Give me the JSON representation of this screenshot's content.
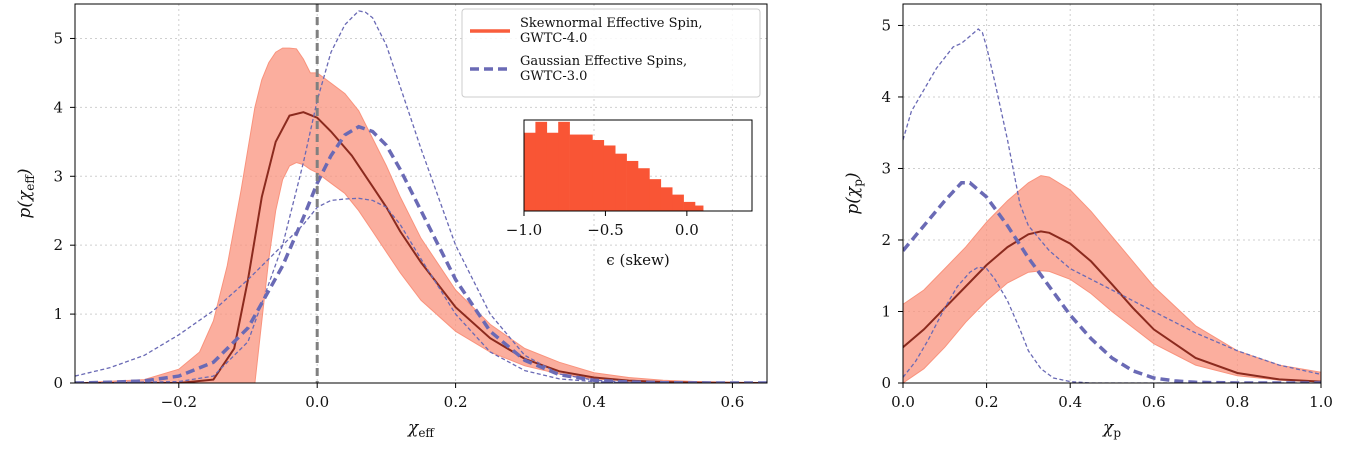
{
  "chart_data": [
    {
      "type": "line",
      "panel": "left",
      "xlabel": "χ_eff",
      "ylabel": "p(χ_eff)",
      "xlim": [
        -0.35,
        0.65
      ],
      "ylim": [
        0,
        5.5
      ],
      "xticks": [
        -0.2,
        0.0,
        0.2,
        0.4,
        0.6
      ],
      "xtick_labels": [
        "−0.2",
        "0.0",
        "0.2",
        "0.4",
        "0.6"
      ],
      "yticks": [
        0,
        1,
        2,
        3,
        4,
        5
      ],
      "ytick_labels": [
        "0",
        "1",
        "2",
        "3",
        "4",
        "5"
      ],
      "grid": true,
      "vline": {
        "x": 0.0,
        "style": "dashed",
        "color": "#808080"
      },
      "legend": {
        "placement": "top-right",
        "entries": [
          {
            "label_lines": [
              "Skewnormal Effective Spin,",
              "GWTC-4.0"
            ],
            "color": "#f95d3c",
            "style": "solid"
          },
          {
            "label_lines": [
              "Gaussian Effective Spins,",
              "GWTC-3.0"
            ],
            "color": "#6a6ab5",
            "style": "dashed"
          }
        ]
      },
      "series": [
        {
          "name": "Skewnormal Effective Spin, GWTC-4.0",
          "kind": "band",
          "color": "#f9937d",
          "x": [
            -0.35,
            -0.25,
            -0.2,
            -0.17,
            -0.15,
            -0.13,
            -0.11,
            -0.1,
            -0.09,
            -0.08,
            -0.07,
            -0.06,
            -0.05,
            -0.04,
            -0.03,
            -0.02,
            -0.01,
            0.0,
            0.02,
            0.04,
            0.06,
            0.08,
            0.1,
            0.12,
            0.15,
            0.2,
            0.25,
            0.3,
            0.35,
            0.4,
            0.45,
            0.5,
            0.55,
            0.6,
            0.65
          ],
          "upper": [
            0.0,
            0.05,
            0.2,
            0.45,
            0.9,
            1.7,
            2.8,
            3.4,
            4.0,
            4.4,
            4.65,
            4.8,
            4.86,
            4.86,
            4.85,
            4.7,
            4.5,
            4.5,
            4.35,
            4.2,
            3.95,
            3.55,
            3.15,
            2.7,
            2.1,
            1.35,
            0.85,
            0.5,
            0.3,
            0.15,
            0.08,
            0.04,
            0.02,
            0.01,
            0.0
          ],
          "lower": [
            0.0,
            0.0,
            0.0,
            0.0,
            0.0,
            0.0,
            0.0,
            0.0,
            0.0,
            0.9,
            1.8,
            2.5,
            2.95,
            3.15,
            3.2,
            3.17,
            3.1,
            3.05,
            2.9,
            2.75,
            2.5,
            2.2,
            1.9,
            1.6,
            1.2,
            0.75,
            0.45,
            0.25,
            0.13,
            0.06,
            0.03,
            0.01,
            0.0,
            0.0,
            0.0
          ]
        },
        {
          "name": "Skewnormal median",
          "kind": "line",
          "style": "solid",
          "color": "#8b2a1e",
          "x": [
            -0.35,
            -0.25,
            -0.2,
            -0.15,
            -0.12,
            -0.1,
            -0.08,
            -0.06,
            -0.04,
            -0.02,
            0.0,
            0.02,
            0.05,
            0.08,
            0.1,
            0.12,
            0.15,
            0.2,
            0.25,
            0.3,
            0.35,
            0.4,
            0.45,
            0.5,
            0.55,
            0.6,
            0.65
          ],
          "y": [
            0.0,
            0.0,
            0.0,
            0.05,
            0.5,
            1.5,
            2.7,
            3.5,
            3.88,
            3.93,
            3.85,
            3.65,
            3.3,
            2.85,
            2.55,
            2.2,
            1.75,
            1.1,
            0.65,
            0.35,
            0.17,
            0.08,
            0.035,
            0.015,
            0.006,
            0.002,
            0.0
          ]
        },
        {
          "name": "Gaussian Effective Spins, GWTC-3.0",
          "kind": "line",
          "style": "dashed",
          "color": "#6a6ab5",
          "x": [
            -0.35,
            -0.3,
            -0.25,
            -0.2,
            -0.15,
            -0.1,
            -0.05,
            -0.02,
            0.0,
            0.02,
            0.04,
            0.06,
            0.08,
            0.1,
            0.12,
            0.15,
            0.2,
            0.25,
            0.3,
            0.35,
            0.4,
            0.45,
            0.5,
            0.55,
            0.6,
            0.65
          ],
          "y": [
            0.0,
            0.01,
            0.03,
            0.1,
            0.3,
            0.8,
            1.7,
            2.4,
            2.9,
            3.3,
            3.6,
            3.72,
            3.65,
            3.45,
            3.1,
            2.5,
            1.5,
            0.75,
            0.33,
            0.12,
            0.04,
            0.015,
            0.005,
            0.001,
            0.0,
            0.0
          ]
        },
        {
          "name": "Gaussian upper",
          "kind": "line",
          "style": "thin-dashed",
          "color": "#6a6ab5",
          "x": [
            -0.35,
            -0.2,
            -0.15,
            -0.1,
            -0.05,
            -0.02,
            0.0,
            0.02,
            0.04,
            0.06,
            0.07,
            0.08,
            0.1,
            0.12,
            0.15,
            0.2,
            0.25,
            0.3,
            0.35,
            0.4,
            0.45,
            0.5
          ],
          "y": [
            0.0,
            0.02,
            0.1,
            0.6,
            2.0,
            3.2,
            4.1,
            4.8,
            5.2,
            5.4,
            5.38,
            5.3,
            4.9,
            4.3,
            3.4,
            2.0,
            1.0,
            0.4,
            0.13,
            0.04,
            0.01,
            0.0
          ]
        },
        {
          "name": "Gaussian lower",
          "kind": "line",
          "style": "thin-dashed",
          "color": "#6a6ab5",
          "x": [
            -0.35,
            -0.3,
            -0.25,
            -0.2,
            -0.15,
            -0.1,
            -0.05,
            -0.02,
            0.0,
            0.02,
            0.04,
            0.06,
            0.08,
            0.1,
            0.12,
            0.15,
            0.2,
            0.25,
            0.3,
            0.35,
            0.4,
            0.45,
            0.5
          ],
          "y": [
            0.1,
            0.22,
            0.4,
            0.7,
            1.05,
            1.5,
            2.0,
            2.3,
            2.55,
            2.65,
            2.67,
            2.68,
            2.65,
            2.55,
            2.3,
            1.8,
            1.0,
            0.45,
            0.18,
            0.06,
            0.02,
            0.005,
            0.0
          ]
        }
      ]
    },
    {
      "type": "bar",
      "panel": "inset",
      "xlabel": "ϵ (skew)",
      "xlim": [
        -1.0,
        0.4
      ],
      "xticks": [
        -1.0,
        -0.5,
        0.0
      ],
      "xtick_labels": [
        "−1.0",
        "−0.5",
        "0.0"
      ],
      "color": "#f95535",
      "bin_edges": [
        -1.0,
        -0.93,
        -0.86,
        -0.79,
        -0.72,
        -0.65,
        -0.58,
        -0.51,
        -0.44,
        -0.37,
        -0.3,
        -0.23,
        -0.16,
        -0.09,
        -0.02,
        0.05,
        0.1
      ],
      "values": [
        0.86,
        0.98,
        0.86,
        0.98,
        0.84,
        0.84,
        0.78,
        0.72,
        0.63,
        0.55,
        0.47,
        0.35,
        0.26,
        0.18,
        0.1,
        0.06
      ]
    },
    {
      "type": "line",
      "panel": "right",
      "xlabel": "χ_p",
      "ylabel": "p(χ_p)",
      "xlim": [
        0.0,
        1.0
      ],
      "ylim": [
        0,
        5.3
      ],
      "xticks": [
        0.0,
        0.2,
        0.4,
        0.6,
        0.8,
        1.0
      ],
      "xtick_labels": [
        "0.0",
        "0.2",
        "0.4",
        "0.6",
        "0.8",
        "1.0"
      ],
      "yticks": [
        0,
        1,
        2,
        3,
        4,
        5
      ],
      "ytick_labels": [
        "0",
        "1",
        "2",
        "3",
        "4",
        "5"
      ],
      "grid": true,
      "series": [
        {
          "name": "Skewnormal band",
          "kind": "band",
          "color": "#f9937d",
          "x": [
            0.0,
            0.05,
            0.1,
            0.15,
            0.2,
            0.25,
            0.3,
            0.33,
            0.35,
            0.4,
            0.45,
            0.5,
            0.6,
            0.7,
            0.8,
            0.9,
            1.0
          ],
          "upper": [
            1.1,
            1.3,
            1.6,
            1.9,
            2.25,
            2.55,
            2.8,
            2.9,
            2.88,
            2.7,
            2.4,
            2.05,
            1.35,
            0.8,
            0.45,
            0.25,
            0.15
          ],
          "lower": [
            0.0,
            0.2,
            0.5,
            0.85,
            1.15,
            1.4,
            1.55,
            1.57,
            1.56,
            1.45,
            1.25,
            1.0,
            0.55,
            0.25,
            0.1,
            0.04,
            0.02
          ]
        },
        {
          "name": "Skewnormal median",
          "kind": "line",
          "style": "solid",
          "color": "#8b2a1e",
          "x": [
            0.0,
            0.05,
            0.1,
            0.15,
            0.2,
            0.25,
            0.3,
            0.33,
            0.35,
            0.4,
            0.45,
            0.5,
            0.55,
            0.6,
            0.7,
            0.8,
            0.9,
            1.0
          ],
          "y": [
            0.5,
            0.75,
            1.05,
            1.35,
            1.65,
            1.9,
            2.08,
            2.12,
            2.1,
            1.95,
            1.7,
            1.38,
            1.05,
            0.75,
            0.35,
            0.14,
            0.05,
            0.02
          ]
        },
        {
          "name": "Gaussian median",
          "kind": "line",
          "style": "dashed",
          "color": "#6a6ab5",
          "x": [
            0.0,
            0.05,
            0.1,
            0.14,
            0.16,
            0.2,
            0.25,
            0.3,
            0.35,
            0.4,
            0.45,
            0.5,
            0.55,
            0.6,
            0.65,
            0.7,
            0.8,
            1.0
          ],
          "y": [
            1.85,
            2.2,
            2.55,
            2.8,
            2.8,
            2.6,
            2.2,
            1.75,
            1.35,
            0.95,
            0.62,
            0.35,
            0.17,
            0.07,
            0.03,
            0.01,
            0.0,
            0.0
          ]
        },
        {
          "name": "Gaussian upper",
          "kind": "line",
          "style": "thin-dashed",
          "color": "#6a6ab5",
          "x": [
            0.0,
            0.02,
            0.05,
            0.08,
            0.1,
            0.12,
            0.14,
            0.16,
            0.18,
            0.19,
            0.2,
            0.22,
            0.25,
            0.28,
            0.3,
            0.35,
            0.4,
            0.5,
            0.6,
            0.7,
            0.8,
            0.9,
            1.0
          ],
          "y": [
            3.4,
            3.8,
            4.1,
            4.4,
            4.55,
            4.7,
            4.75,
            4.85,
            4.95,
            4.9,
            4.7,
            4.2,
            3.4,
            2.5,
            2.2,
            1.85,
            1.6,
            1.3,
            1.0,
            0.7,
            0.45,
            0.25,
            0.12
          ]
        },
        {
          "name": "Gaussian lower",
          "kind": "line",
          "style": "thin-dashed",
          "color": "#6a6ab5",
          "x": [
            0.0,
            0.03,
            0.06,
            0.1,
            0.13,
            0.16,
            0.18,
            0.2,
            0.22,
            0.25,
            0.28,
            0.3,
            0.33,
            0.36,
            0.4,
            0.45,
            1.0
          ],
          "y": [
            0.08,
            0.3,
            0.6,
            1.05,
            1.35,
            1.55,
            1.62,
            1.6,
            1.45,
            1.15,
            0.75,
            0.45,
            0.2,
            0.07,
            0.02,
            0.0,
            0.0
          ]
        }
      ]
    }
  ]
}
